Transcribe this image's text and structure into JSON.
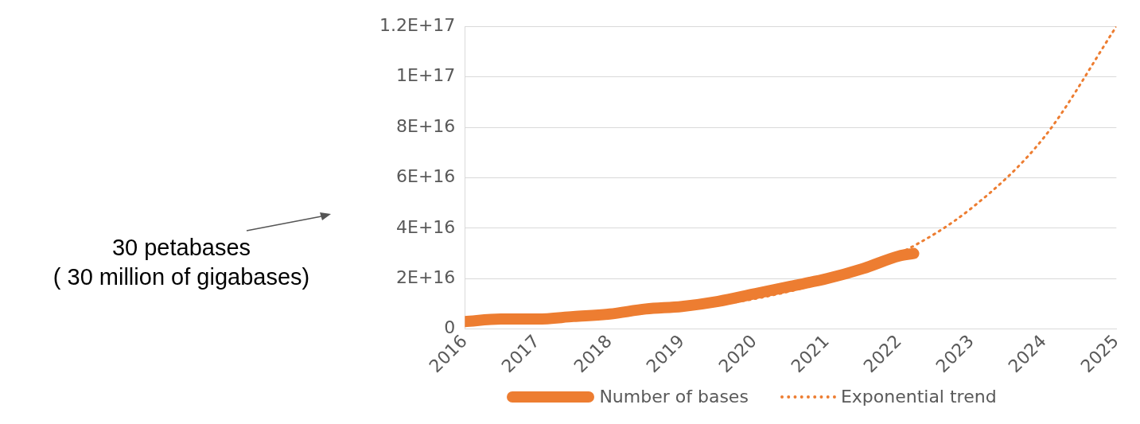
{
  "chart_data": {
    "type": "line",
    "xlim": [
      2016,
      2025
    ],
    "xticks": [
      2016,
      2017,
      2018,
      2019,
      2020,
      2021,
      2022,
      2023,
      2024,
      2025
    ],
    "ylim": [
      0,
      1.2e+17
    ],
    "yticks": [
      0,
      {
        "value": 2e+16,
        "label": "2E+16"
      },
      {
        "value": 4e+16,
        "label": "4E+16"
      },
      {
        "value": 6e+16,
        "label": "6E+16"
      },
      {
        "value": 8e+16,
        "label": "8E+16"
      },
      {
        "value": 1e+17,
        "label": "1E+17"
      },
      {
        "value": 1.2e+17,
        "label": "1.2E+17"
      }
    ],
    "grid": "y",
    "legend": "bottom",
    "marker": "none",
    "annotations": [
      "30 petabases\n( 30 million of gigabases)"
    ],
    "series": [
      {
        "name": "Number of bases",
        "color": "#ed7d31",
        "line_style": "solid",
        "x": [
          2016,
          2016.5,
          2017,
          2017.5,
          2018,
          2018.5,
          2019,
          2019.5,
          2020,
          2020.5,
          2021,
          2021.5,
          2022,
          2022.2
        ],
        "values": [
          3000000000000000.0,
          4000000000000000.0,
          4000000000000000.0,
          5000000000000000.0,
          6000000000000000.0,
          8000000000000000.0,
          9000000000000000.0,
          1.1e+16,
          1.4e+16,
          1.7e+16,
          2e+16,
          2.4e+16,
          2.9e+16,
          3e+16
        ]
      },
      {
        "name": "Exponential trend",
        "color": "#ed7d31",
        "line_style": "dotted",
        "x": [
          2018,
          2019,
          2020,
          2021,
          2022,
          2023,
          2024,
          2025
        ],
        "values": [
          5000000000000000.0,
          8000000000000000.0,
          1.2e+16,
          1.9e+16,
          3e+16,
          4.8e+16,
          7.6e+16,
          1.2e+17
        ]
      }
    ]
  }
}
